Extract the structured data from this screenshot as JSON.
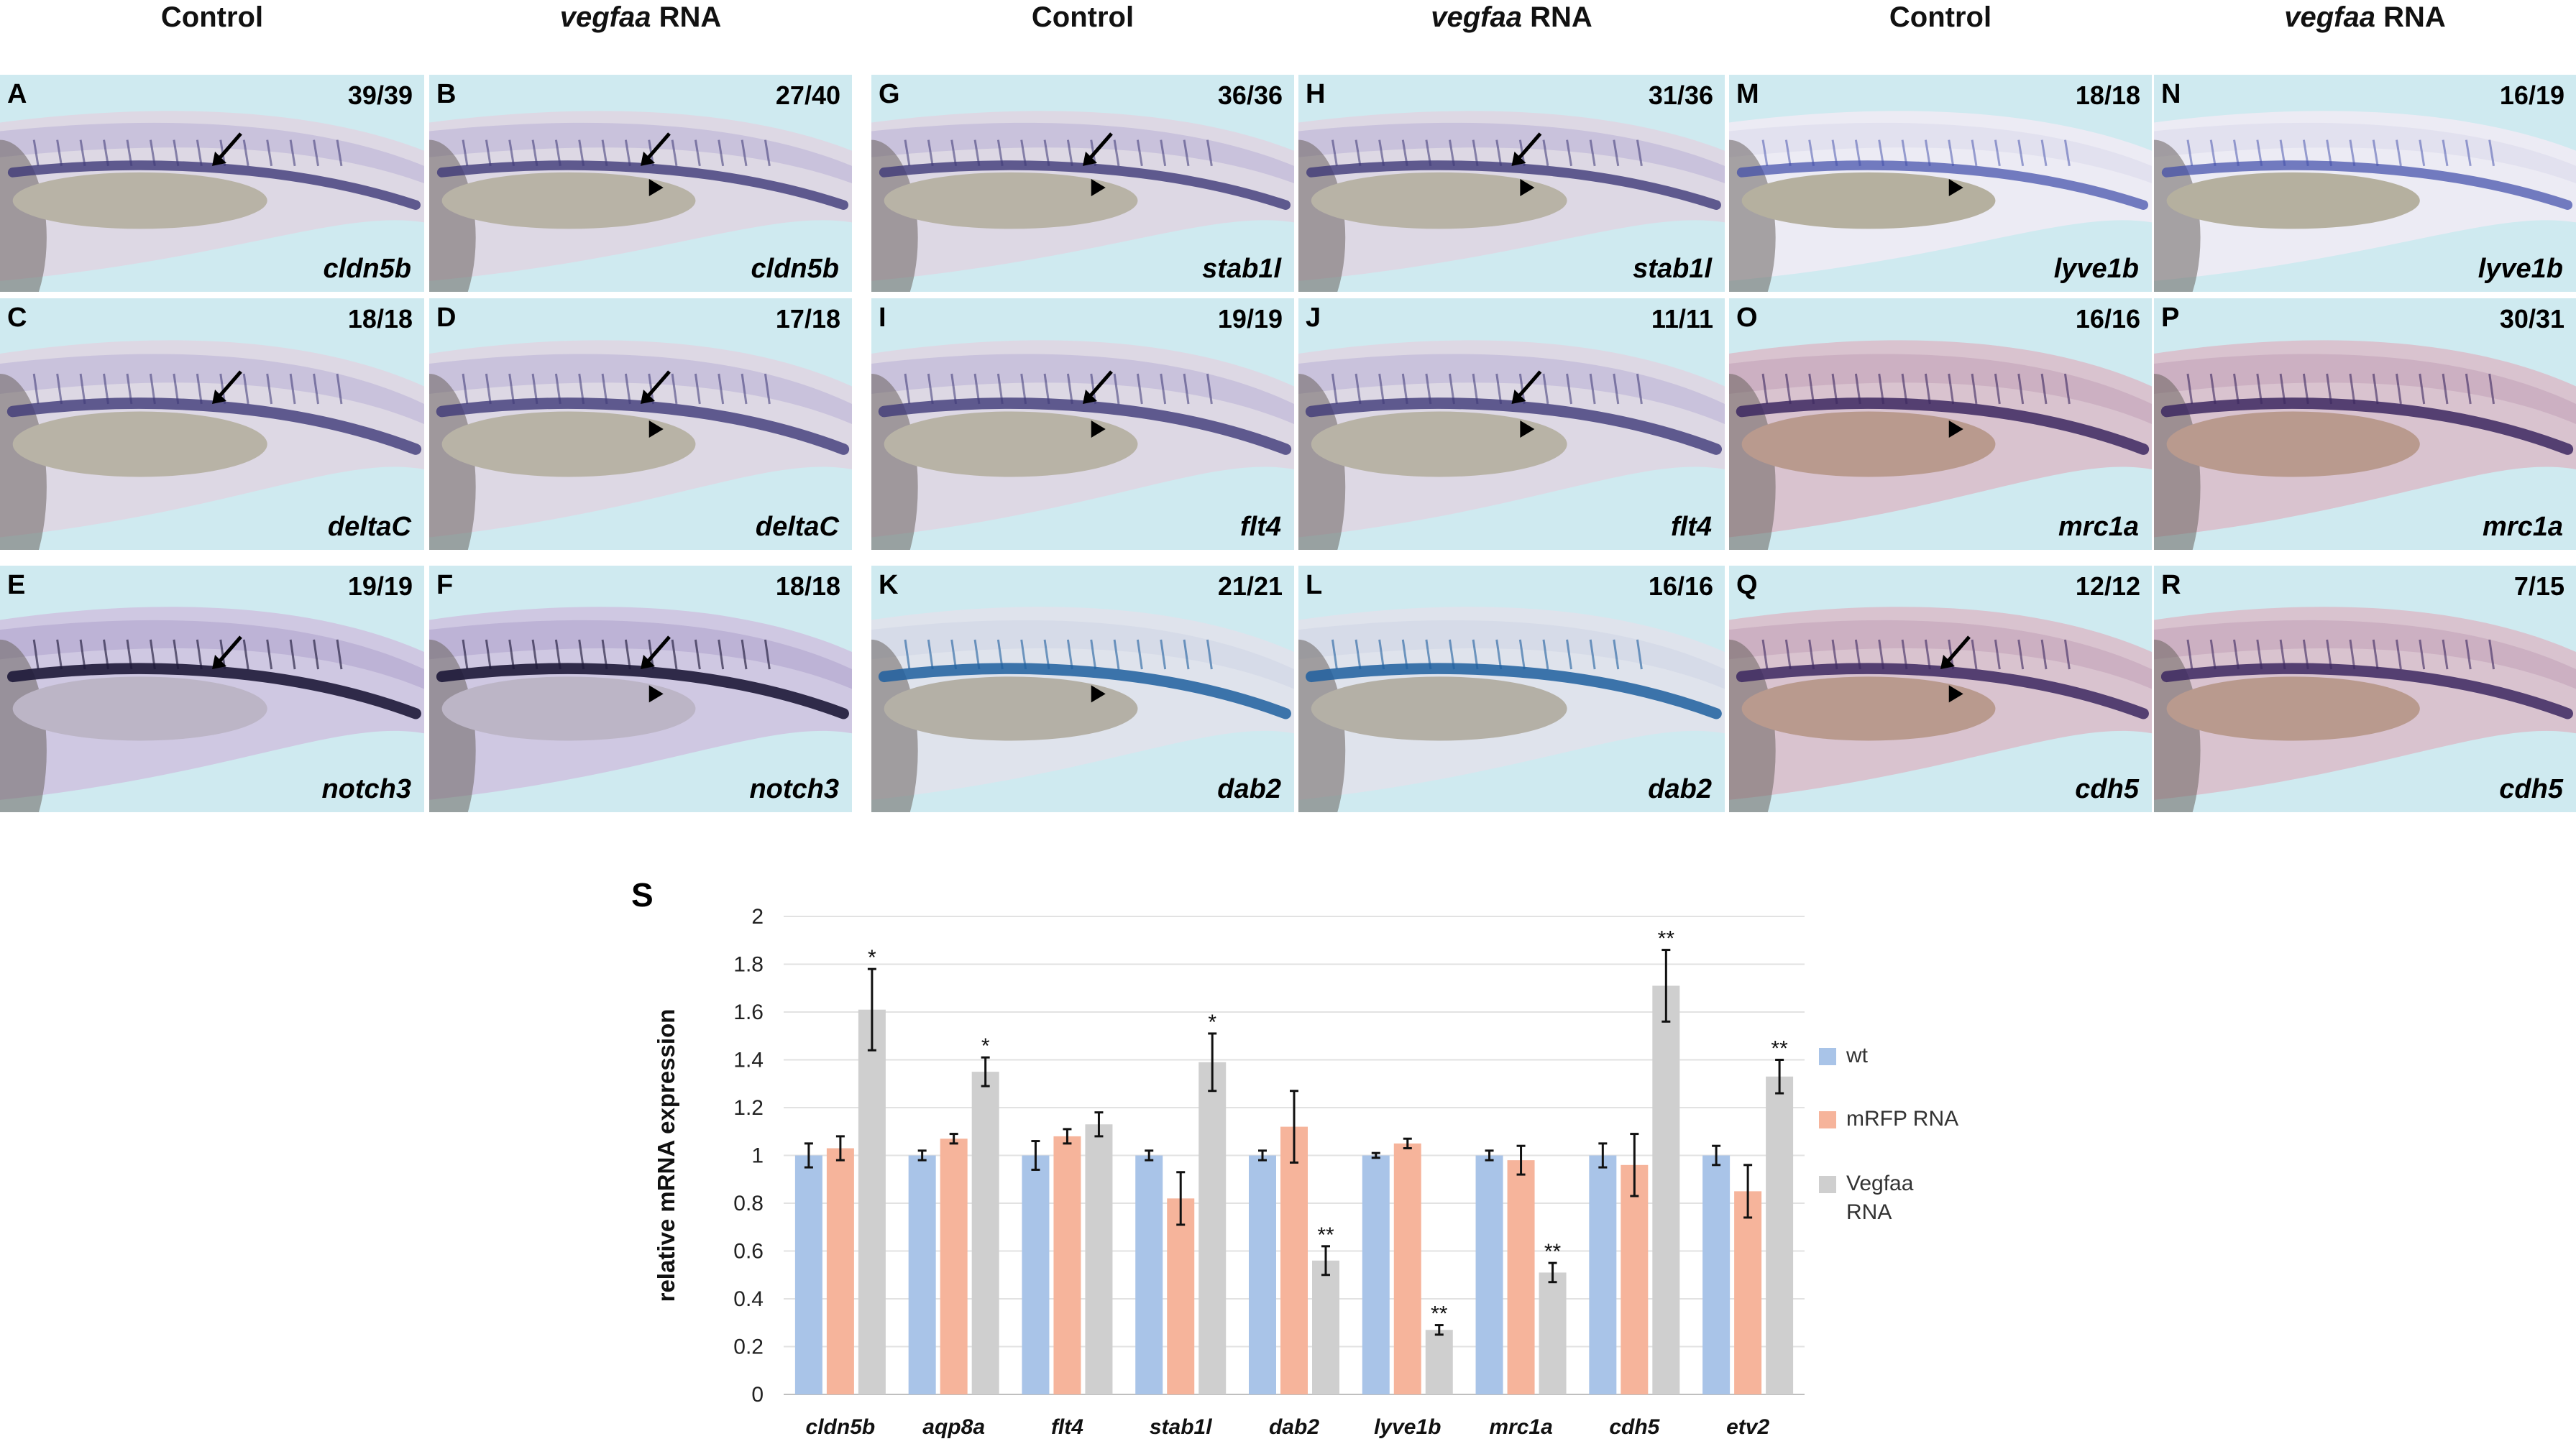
{
  "column_headers": [
    {
      "prefix": "",
      "italic": "",
      "text": "Control"
    },
    {
      "prefix": "",
      "italic": "vegfaa",
      "text": " RNA"
    },
    {
      "prefix": "",
      "italic": "",
      "text": "Control"
    },
    {
      "prefix": "",
      "italic": "vegfaa",
      "text": " RNA"
    },
    {
      "prefix": "",
      "italic": "",
      "text": "Control"
    },
    {
      "prefix": "",
      "italic": "vegfaa",
      "text": " RNA"
    }
  ],
  "panels": [
    {
      "letter": "A",
      "count": "39/39",
      "gene": "cldn5b",
      "style": "blue-light",
      "marks": "arrow"
    },
    {
      "letter": "B",
      "count": "27/40",
      "gene": "cldn5b",
      "style": "blue-light",
      "marks": "arrow+head"
    },
    {
      "letter": "G",
      "count": "36/36",
      "gene": "stab1l",
      "style": "blue-light",
      "marks": "arrow+head"
    },
    {
      "letter": "H",
      "count": "31/36",
      "gene": "stab1l",
      "style": "blue-light",
      "marks": "arrow+head"
    },
    {
      "letter": "M",
      "count": "18/18",
      "gene": "lyve1b",
      "style": "pale",
      "marks": "head"
    },
    {
      "letter": "N",
      "count": "16/19",
      "gene": "lyve1b",
      "style": "pale",
      "marks": ""
    },
    {
      "letter": "C",
      "count": "18/18",
      "gene": "deltaC",
      "style": "blue-light",
      "marks": "arrow"
    },
    {
      "letter": "D",
      "count": "17/18",
      "gene": "deltaC",
      "style": "blue-light",
      "marks": "arrow+head"
    },
    {
      "letter": "I",
      "count": "19/19",
      "gene": "flt4",
      "style": "blue-light",
      "marks": "arrow+head"
    },
    {
      "letter": "J",
      "count": "11/11",
      "gene": "flt4",
      "style": "blue-light",
      "marks": "arrow+head"
    },
    {
      "letter": "O",
      "count": "16/16",
      "gene": "mrc1a",
      "style": "pink",
      "marks": "head"
    },
    {
      "letter": "P",
      "count": "30/31",
      "gene": "mrc1a",
      "style": "pink",
      "marks": ""
    },
    {
      "letter": "E",
      "count": "19/19",
      "gene": "notch3",
      "style": "dark",
      "marks": "arrow"
    },
    {
      "letter": "F",
      "count": "18/18",
      "gene": "notch3",
      "style": "dark",
      "marks": "arrow+head"
    },
    {
      "letter": "K",
      "count": "21/21",
      "gene": "dab2",
      "style": "cyan",
      "marks": "head"
    },
    {
      "letter": "L",
      "count": "16/16",
      "gene": "dab2",
      "style": "cyan",
      "marks": ""
    },
    {
      "letter": "Q",
      "count": "12/12",
      "gene": "cdh5",
      "style": "pink",
      "marks": "arrow+head"
    },
    {
      "letter": "R",
      "count": "7/15",
      "gene": "cdh5",
      "style": "pink",
      "marks": ""
    }
  ],
  "chart_label": "S",
  "chart_data": {
    "type": "bar",
    "ylabel": "relative mRNA expression",
    "xlabel": "",
    "ylim": [
      0,
      2
    ],
    "yticks": [
      "0",
      "0.2",
      "0.4",
      "0.6",
      "0.8",
      "1",
      "1.2",
      "1.4",
      "1.6",
      "1.8",
      "2"
    ],
    "categories": [
      "cldn5b",
      "aqp8a",
      "flt4",
      "stab1l",
      "dab2",
      "lyve1b",
      "mrc1a",
      "cdh5",
      "etv2"
    ],
    "series": [
      {
        "name": "wt",
        "color": "#a9c4e8",
        "values": [
          1.0,
          1.0,
          1.0,
          1.0,
          1.0,
          1.0,
          1.0,
          1.0,
          1.0
        ],
        "errors": [
          0.05,
          0.02,
          0.06,
          0.02,
          0.02,
          0.01,
          0.02,
          0.05,
          0.04
        ]
      },
      {
        "name": "mRFP RNA",
        "color": "#f6b49b",
        "values": [
          1.03,
          1.07,
          1.08,
          0.82,
          1.12,
          1.05,
          0.98,
          0.96,
          0.85
        ],
        "errors": [
          0.05,
          0.02,
          0.03,
          0.11,
          0.15,
          0.02,
          0.06,
          0.13,
          0.11
        ]
      },
      {
        "name": "Vegfaa\nRNA",
        "color": "#cfcfcf",
        "values": [
          1.61,
          1.35,
          1.13,
          1.39,
          0.56,
          0.27,
          0.51,
          1.71,
          1.33
        ],
        "errors": [
          0.17,
          0.06,
          0.05,
          0.12,
          0.06,
          0.02,
          0.04,
          0.15,
          0.07
        ]
      }
    ],
    "significance": [
      "*",
      "*",
      "",
      "*",
      "**",
      "**",
      "**",
      "**",
      "**"
    ],
    "legend_position": "right"
  }
}
